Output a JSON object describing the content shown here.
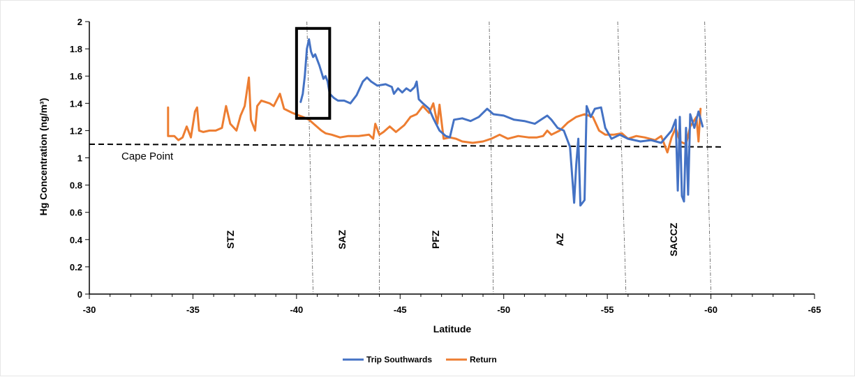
{
  "chart_data": {
    "type": "line",
    "title": "",
    "xlabel": "Latitude",
    "ylabel": "Hg Concentration (ng/m³)",
    "xlim": [
      -30,
      -65
    ],
    "ylim": [
      0,
      2
    ],
    "x_ticks": [
      "-30",
      "-35",
      "-40",
      "-45",
      "-50",
      "-55",
      "-60",
      "-65"
    ],
    "y_ticks": [
      "0",
      "0.2",
      "0.4",
      "0.6",
      "0.8",
      "1",
      "1.2",
      "1.4",
      "1.6",
      "1.8",
      "2"
    ],
    "grid": false,
    "legend_position": "bottom",
    "reference_line": {
      "label": "Cape Point",
      "points": [
        [
          -30,
          1.1
        ],
        [
          -60.6,
          1.08
        ]
      ],
      "color": "#000000"
    },
    "zones": [
      {
        "label": "STZ",
        "x": -36.8
      },
      {
        "label": "SAZ",
        "x": -42.2
      },
      {
        "label": "PFZ",
        "x": -46.7
      },
      {
        "label": "AZ",
        "x": -52.7
      },
      {
        "label": "SACCZ",
        "x": -58.2
      }
    ],
    "zone_boundaries": [
      [
        [
          -40.5,
          2.0
        ],
        [
          -40.8,
          0.0
        ]
      ],
      [
        [
          -44.0,
          2.0
        ],
        [
          -44.0,
          0.0
        ]
      ],
      [
        [
          -49.3,
          2.0
        ],
        [
          -49.5,
          0.0
        ]
      ],
      [
        [
          -55.5,
          2.0
        ],
        [
          -55.9,
          0.0
        ]
      ],
      [
        [
          -59.7,
          2.0
        ],
        [
          -60.0,
          0.0
        ]
      ]
    ],
    "highlight_box": {
      "x0": -40.0,
      "x1": -41.6,
      "y0": 1.29,
      "y1": 1.95
    },
    "series": [
      {
        "name": "Trip Southwards",
        "color": "#4472C4",
        "points": [
          [
            -40.2,
            1.41
          ],
          [
            -40.3,
            1.47
          ],
          [
            -40.4,
            1.6
          ],
          [
            -40.5,
            1.8
          ],
          [
            -40.6,
            1.87
          ],
          [
            -40.7,
            1.78
          ],
          [
            -40.8,
            1.74
          ],
          [
            -40.9,
            1.76
          ],
          [
            -41.0,
            1.72
          ],
          [
            -41.1,
            1.68
          ],
          [
            -41.2,
            1.63
          ],
          [
            -41.3,
            1.58
          ],
          [
            -41.4,
            1.6
          ],
          [
            -41.5,
            1.56
          ],
          [
            -41.6,
            1.47
          ],
          [
            -41.8,
            1.44
          ],
          [
            -42.0,
            1.42
          ],
          [
            -42.3,
            1.42
          ],
          [
            -42.6,
            1.4
          ],
          [
            -42.9,
            1.46
          ],
          [
            -43.2,
            1.56
          ],
          [
            -43.4,
            1.59
          ],
          [
            -43.6,
            1.56
          ],
          [
            -43.9,
            1.53
          ],
          [
            -44.3,
            1.54
          ],
          [
            -44.6,
            1.52
          ],
          [
            -44.7,
            1.47
          ],
          [
            -44.9,
            1.51
          ],
          [
            -45.1,
            1.48
          ],
          [
            -45.3,
            1.51
          ],
          [
            -45.5,
            1.49
          ],
          [
            -45.7,
            1.52
          ],
          [
            -45.8,
            1.56
          ],
          [
            -45.9,
            1.43
          ],
          [
            -46.1,
            1.4
          ],
          [
            -46.4,
            1.36
          ],
          [
            -46.6,
            1.29
          ],
          [
            -46.9,
            1.2
          ],
          [
            -47.2,
            1.16
          ],
          [
            -47.4,
            1.15
          ],
          [
            -47.6,
            1.28
          ],
          [
            -48.0,
            1.29
          ],
          [
            -48.4,
            1.27
          ],
          [
            -48.8,
            1.3
          ],
          [
            -49.2,
            1.36
          ],
          [
            -49.5,
            1.32
          ],
          [
            -50.0,
            1.31
          ],
          [
            -50.5,
            1.28
          ],
          [
            -51.0,
            1.27
          ],
          [
            -51.5,
            1.25
          ],
          [
            -51.9,
            1.29
          ],
          [
            -52.1,
            1.31
          ],
          [
            -52.3,
            1.28
          ],
          [
            -52.6,
            1.22
          ],
          [
            -52.9,
            1.2
          ],
          [
            -53.2,
            1.08
          ],
          [
            -53.4,
            0.67
          ],
          [
            -53.5,
            0.95
          ],
          [
            -53.6,
            1.14
          ],
          [
            -53.7,
            0.65
          ],
          [
            -53.9,
            0.69
          ],
          [
            -54.0,
            1.38
          ],
          [
            -54.2,
            1.3
          ],
          [
            -54.4,
            1.36
          ],
          [
            -54.7,
            1.37
          ],
          [
            -54.9,
            1.22
          ],
          [
            -55.2,
            1.14
          ],
          [
            -55.6,
            1.17
          ],
          [
            -56.0,
            1.14
          ],
          [
            -56.6,
            1.12
          ],
          [
            -57.1,
            1.13
          ],
          [
            -57.6,
            1.11
          ],
          [
            -58.1,
            1.2
          ],
          [
            -58.3,
            1.28
          ],
          [
            -58.4,
            0.76
          ],
          [
            -58.5,
            1.3
          ],
          [
            -58.6,
            0.72
          ],
          [
            -58.7,
            0.68
          ],
          [
            -58.8,
            1.22
          ],
          [
            -58.9,
            0.73
          ],
          [
            -59.0,
            1.32
          ],
          [
            -59.2,
            1.22
          ],
          [
            -59.4,
            1.34
          ],
          [
            -59.6,
            1.23
          ]
        ]
      },
      {
        "name": "Return",
        "color": "#ED7D31",
        "points": [
          [
            -33.8,
            1.37
          ],
          [
            -33.8,
            1.16
          ],
          [
            -34.1,
            1.16
          ],
          [
            -34.3,
            1.13
          ],
          [
            -34.5,
            1.15
          ],
          [
            -34.7,
            1.23
          ],
          [
            -34.9,
            1.15
          ],
          [
            -35.1,
            1.34
          ],
          [
            -35.2,
            1.37
          ],
          [
            -35.3,
            1.2
          ],
          [
            -35.5,
            1.19
          ],
          [
            -35.8,
            1.2
          ],
          [
            -36.1,
            1.2
          ],
          [
            -36.4,
            1.22
          ],
          [
            -36.6,
            1.38
          ],
          [
            -36.8,
            1.25
          ],
          [
            -37.1,
            1.2
          ],
          [
            -37.3,
            1.31
          ],
          [
            -37.5,
            1.38
          ],
          [
            -37.7,
            1.59
          ],
          [
            -37.8,
            1.28
          ],
          [
            -38.0,
            1.2
          ],
          [
            -38.1,
            1.38
          ],
          [
            -38.3,
            1.42
          ],
          [
            -38.7,
            1.4
          ],
          [
            -38.9,
            1.38
          ],
          [
            -39.2,
            1.47
          ],
          [
            -39.4,
            1.36
          ],
          [
            -39.8,
            1.33
          ],
          [
            -40.3,
            1.3
          ],
          [
            -40.6,
            1.28
          ],
          [
            -40.9,
            1.24
          ],
          [
            -41.2,
            1.2
          ],
          [
            -41.4,
            1.18
          ],
          [
            -41.7,
            1.17
          ],
          [
            -42.1,
            1.15
          ],
          [
            -42.5,
            1.16
          ],
          [
            -43.0,
            1.16
          ],
          [
            -43.5,
            1.17
          ],
          [
            -43.7,
            1.14
          ],
          [
            -43.8,
            1.25
          ],
          [
            -44.0,
            1.17
          ],
          [
            -44.2,
            1.19
          ],
          [
            -44.5,
            1.23
          ],
          [
            -44.8,
            1.19
          ],
          [
            -45.2,
            1.24
          ],
          [
            -45.5,
            1.3
          ],
          [
            -45.8,
            1.32
          ],
          [
            -46.1,
            1.38
          ],
          [
            -46.4,
            1.33
          ],
          [
            -46.6,
            1.4
          ],
          [
            -46.8,
            1.25
          ],
          [
            -46.9,
            1.39
          ],
          [
            -47.1,
            1.14
          ],
          [
            -47.4,
            1.15
          ],
          [
            -47.7,
            1.14
          ],
          [
            -48.0,
            1.12
          ],
          [
            -48.5,
            1.11
          ],
          [
            -49.0,
            1.12
          ],
          [
            -49.4,
            1.14
          ],
          [
            -49.8,
            1.17
          ],
          [
            -50.2,
            1.14
          ],
          [
            -50.7,
            1.16
          ],
          [
            -51.2,
            1.15
          ],
          [
            -51.6,
            1.15
          ],
          [
            -51.9,
            1.16
          ],
          [
            -52.1,
            1.2
          ],
          [
            -52.3,
            1.17
          ],
          [
            -52.7,
            1.2
          ],
          [
            -53.1,
            1.26
          ],
          [
            -53.5,
            1.3
          ],
          [
            -53.9,
            1.32
          ],
          [
            -54.3,
            1.3
          ],
          [
            -54.6,
            1.2
          ],
          [
            -54.9,
            1.17
          ],
          [
            -55.3,
            1.17
          ],
          [
            -55.7,
            1.18
          ],
          [
            -56.0,
            1.14
          ],
          [
            -56.4,
            1.16
          ],
          [
            -56.8,
            1.15
          ],
          [
            -57.3,
            1.13
          ],
          [
            -57.6,
            1.16
          ],
          [
            -57.9,
            1.04
          ],
          [
            -58.1,
            1.15
          ],
          [
            -58.3,
            1.22
          ],
          [
            -58.5,
            1.12
          ],
          [
            -58.8,
            1.1
          ],
          [
            -59.0,
            1.23
          ],
          [
            -59.3,
            1.3
          ],
          [
            -59.4,
            1.12
          ],
          [
            -59.5,
            1.36
          ]
        ]
      }
    ]
  },
  "legend": {
    "items": [
      {
        "label": "Trip Southwards",
        "color": "#4472C4"
      },
      {
        "label": "Return",
        "color": "#ED7D31"
      }
    ]
  }
}
